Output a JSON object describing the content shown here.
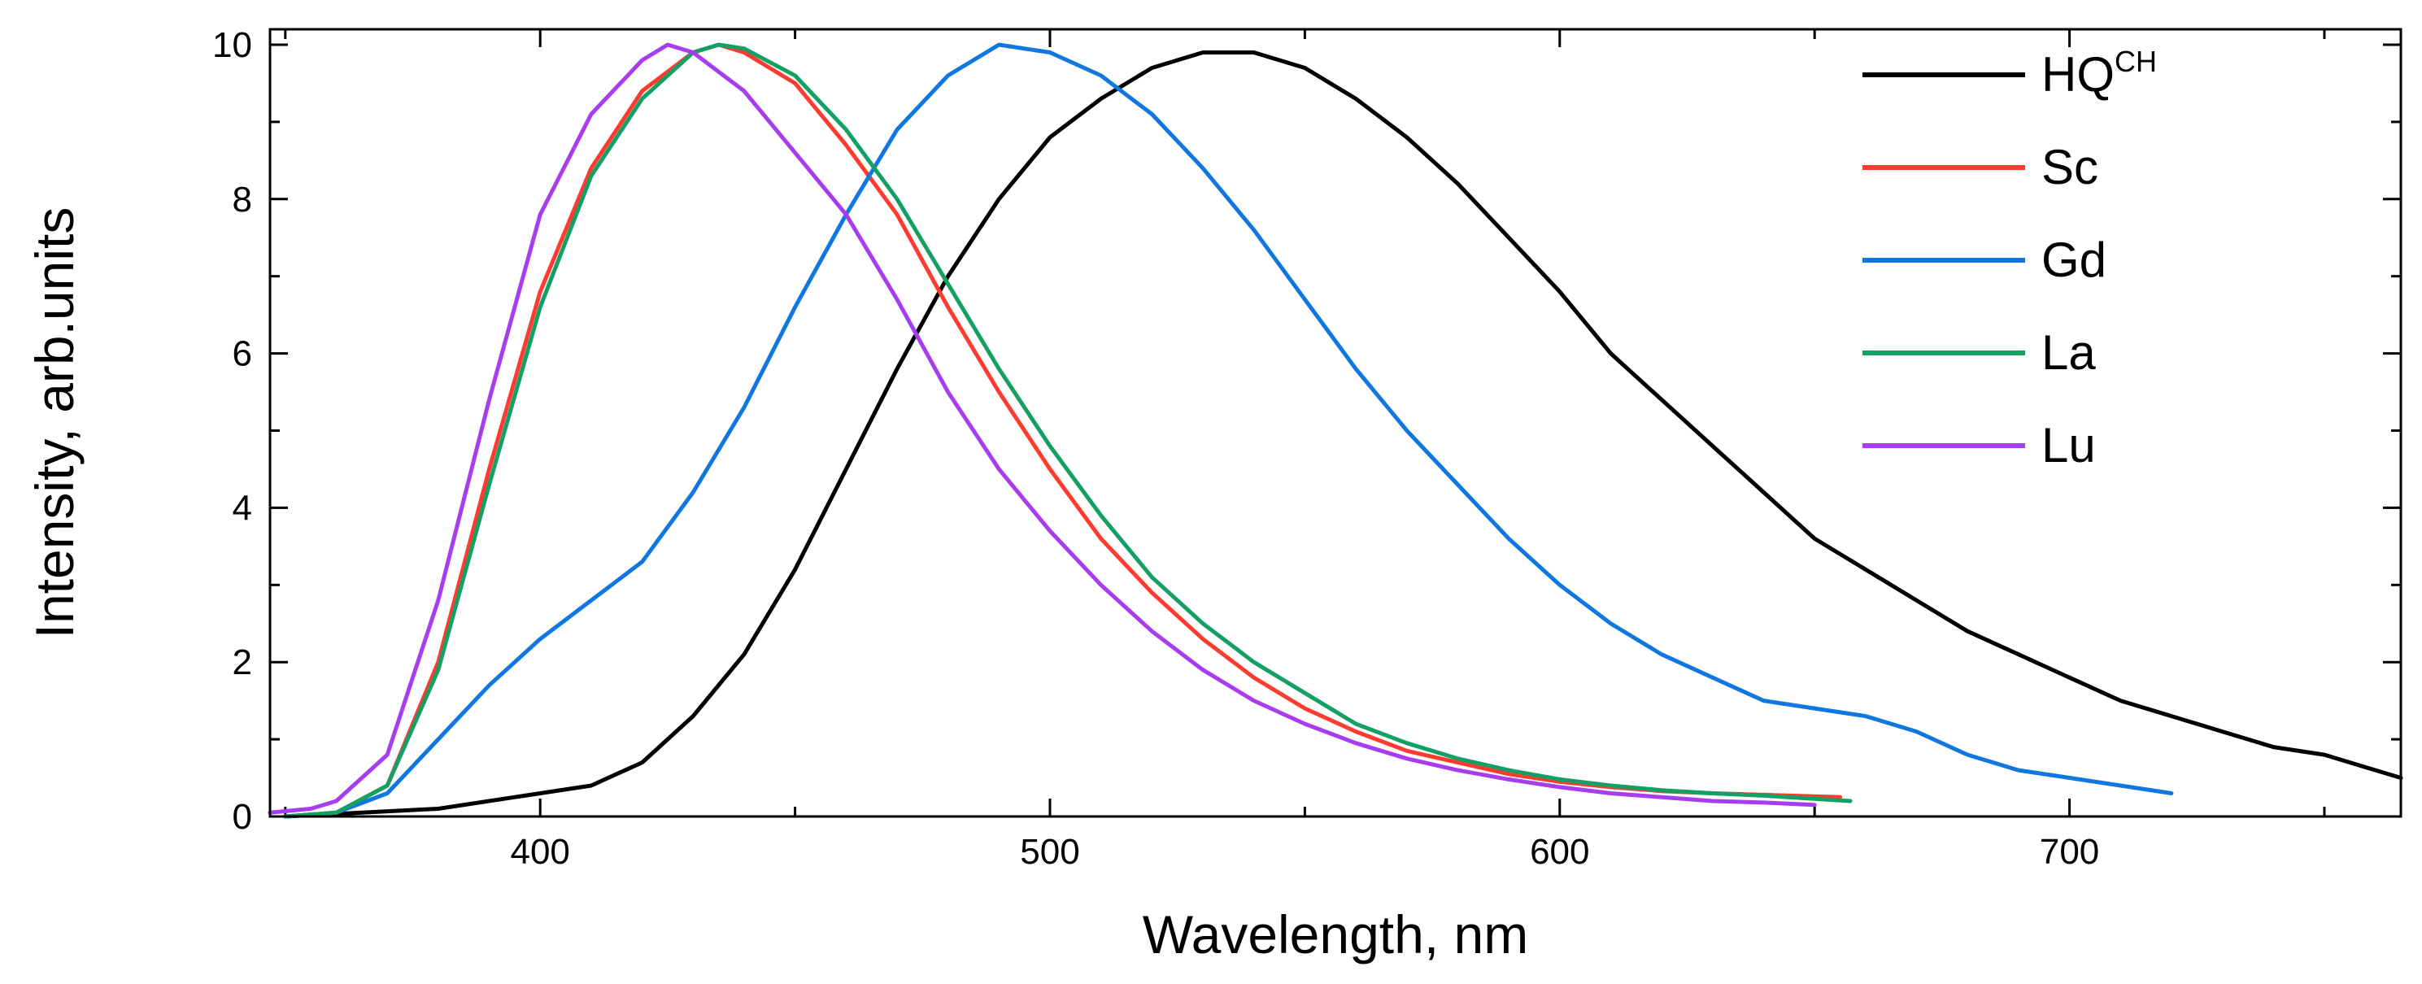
{
  "chart_data": {
    "type": "line",
    "xlabel": "Wavelength, nm",
    "ylabel": "Intensity, arb.units",
    "xlim": [
      347,
      765
    ],
    "ylim": [
      0,
      10.2
    ],
    "xticks": [
      400,
      500,
      600,
      700
    ],
    "yticks": [
      0,
      2,
      4,
      6,
      8,
      10
    ],
    "legend_position": "top-right",
    "series": [
      {
        "name": "HQ",
        "sup": "CH",
        "color": "#000000",
        "x": [
          350,
          380,
          400,
          410,
          420,
          430,
          440,
          450,
          460,
          470,
          480,
          490,
          500,
          510,
          520,
          530,
          540,
          550,
          560,
          570,
          580,
          590,
          600,
          610,
          620,
          630,
          640,
          650,
          660,
          670,
          680,
          690,
          700,
          710,
          720,
          730,
          740,
          750,
          760,
          765
        ],
        "y": [
          0.0,
          0.1,
          0.3,
          0.4,
          0.7,
          1.3,
          2.1,
          3.2,
          4.5,
          5.8,
          7.0,
          8.0,
          8.8,
          9.3,
          9.7,
          9.9,
          9.9,
          9.7,
          9.3,
          8.8,
          8.2,
          7.5,
          6.8,
          6.0,
          5.4,
          4.8,
          4.2,
          3.6,
          3.2,
          2.8,
          2.4,
          2.1,
          1.8,
          1.5,
          1.3,
          1.1,
          0.9,
          0.8,
          0.6,
          0.5
        ]
      },
      {
        "name": "Sc",
        "sup": "",
        "color": "#ff3b30",
        "x": [
          350,
          360,
          370,
          380,
          390,
          400,
          410,
          420,
          430,
          435,
          440,
          450,
          460,
          470,
          480,
          490,
          500,
          510,
          520,
          530,
          540,
          550,
          560,
          570,
          580,
          590,
          600,
          610,
          620,
          630,
          640,
          655
        ],
        "y": [
          0.0,
          0.05,
          0.4,
          2.0,
          4.5,
          6.8,
          8.4,
          9.4,
          9.9,
          10.0,
          9.9,
          9.5,
          8.7,
          7.8,
          6.6,
          5.5,
          4.5,
          3.6,
          2.9,
          2.3,
          1.8,
          1.4,
          1.1,
          0.85,
          0.7,
          0.55,
          0.45,
          0.38,
          0.33,
          0.3,
          0.28,
          0.25
        ]
      },
      {
        "name": "Gd",
        "sup": "",
        "color": "#1177e0",
        "x": [
          350,
          360,
          370,
          380,
          390,
          400,
          410,
          420,
          430,
          440,
          450,
          460,
          470,
          480,
          490,
          500,
          510,
          520,
          530,
          540,
          550,
          560,
          570,
          580,
          590,
          600,
          610,
          620,
          630,
          640,
          650,
          660,
          670,
          680,
          690,
          700,
          710,
          720
        ],
        "y": [
          0.0,
          0.05,
          0.3,
          1.0,
          1.7,
          2.3,
          2.8,
          3.3,
          4.2,
          5.3,
          6.6,
          7.8,
          8.9,
          9.6,
          10.0,
          9.9,
          9.6,
          9.1,
          8.4,
          7.6,
          6.7,
          5.8,
          5.0,
          4.3,
          3.6,
          3.0,
          2.5,
          2.1,
          1.8,
          1.5,
          1.4,
          1.3,
          1.1,
          0.8,
          0.6,
          0.5,
          0.4,
          0.3
        ]
      },
      {
        "name": "La",
        "sup": "",
        "color": "#14a065",
        "x": [
          350,
          360,
          370,
          380,
          390,
          400,
          410,
          420,
          430,
          435,
          440,
          450,
          460,
          470,
          480,
          490,
          500,
          510,
          520,
          530,
          540,
          550,
          560,
          570,
          580,
          590,
          600,
          610,
          620,
          630,
          640,
          657
        ],
        "y": [
          0.0,
          0.05,
          0.4,
          1.9,
          4.3,
          6.6,
          8.3,
          9.3,
          9.9,
          10.0,
          9.95,
          9.6,
          8.9,
          8.0,
          6.9,
          5.8,
          4.8,
          3.9,
          3.1,
          2.5,
          2.0,
          1.6,
          1.2,
          0.95,
          0.75,
          0.6,
          0.48,
          0.4,
          0.34,
          0.3,
          0.27,
          0.2
        ]
      },
      {
        "name": "Lu",
        "sup": "",
        "color": "#a83df0",
        "x": [
          347,
          355,
          360,
          370,
          380,
          390,
          400,
          410,
          420,
          425,
          430,
          440,
          450,
          460,
          470,
          480,
          490,
          500,
          510,
          520,
          530,
          540,
          550,
          560,
          570,
          580,
          590,
          600,
          610,
          620,
          630,
          640,
          650
        ],
        "y": [
          0.05,
          0.1,
          0.2,
          0.8,
          2.8,
          5.4,
          7.8,
          9.1,
          9.8,
          10.0,
          9.9,
          9.4,
          8.6,
          7.8,
          6.7,
          5.5,
          4.5,
          3.7,
          3.0,
          2.4,
          1.9,
          1.5,
          1.2,
          0.95,
          0.75,
          0.6,
          0.48,
          0.38,
          0.3,
          0.25,
          0.2,
          0.18,
          0.15
        ]
      }
    ]
  }
}
